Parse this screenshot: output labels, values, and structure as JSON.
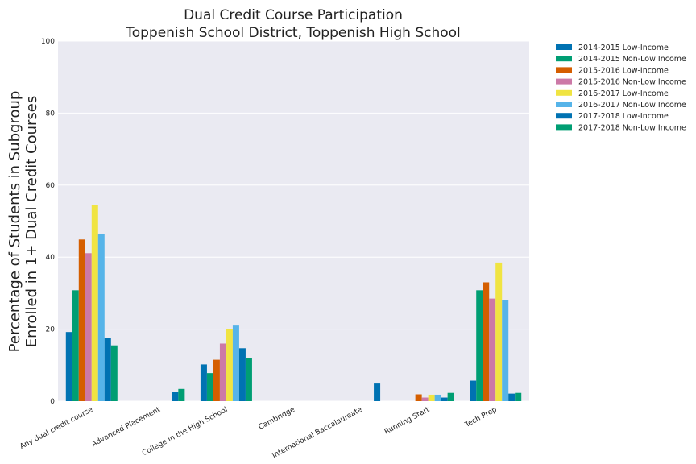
{
  "chart_data": {
    "type": "bar",
    "title": [
      "Dual Credit Course Participation",
      "Toppenish School District, Toppenish High School"
    ],
    "ylabel": [
      "Percentage of Students in Subgroup",
      "Enrolled in 1+ Dual Credit Courses"
    ],
    "xlabel": "",
    "ylim": [
      0,
      100
    ],
    "yticks": [
      0,
      20,
      40,
      60,
      80,
      100
    ],
    "grid": true,
    "legend_position": "outside-top-right",
    "categories": [
      "Any dual credit course",
      "Advanced Placement",
      "College in the High School",
      "Cambridge",
      "International Baccalaureate",
      "Running Start",
      "Tech Prep"
    ],
    "series": [
      {
        "name": "2014-2015 Low-Income",
        "color": "#0072B2",
        "values": [
          19.2,
          0,
          10.2,
          0,
          0,
          0,
          5.7
        ]
      },
      {
        "name": "2014-2015 Non-Low Income",
        "color": "#009E73",
        "values": [
          30.8,
          0,
          7.8,
          0,
          0,
          0,
          30.8
        ]
      },
      {
        "name": "2015-2016 Low-Income",
        "color": "#D55E00",
        "values": [
          44.9,
          0,
          11.5,
          0,
          0,
          1.9,
          33.0
        ]
      },
      {
        "name": "2015-2016 Non-Low Income",
        "color": "#CC79A7",
        "values": [
          41.1,
          0,
          16.0,
          0,
          0,
          1.0,
          28.5
        ]
      },
      {
        "name": "2016-2017 Low-Income",
        "color": "#F0E442",
        "values": [
          54.5,
          0,
          20.0,
          0,
          0,
          1.8,
          38.5
        ]
      },
      {
        "name": "2016-2017 Non-Low Income",
        "color": "#56B4E9",
        "values": [
          46.4,
          0,
          21.0,
          0,
          0,
          1.8,
          28.0
        ]
      },
      {
        "name": "2017-2018 Low-Income",
        "color": "#0072B2",
        "values": [
          17.6,
          2.5,
          14.7,
          0,
          4.9,
          1.0,
          2.1
        ]
      },
      {
        "name": "2017-2018 Non-Low Income",
        "color": "#009E73",
        "values": [
          15.5,
          3.4,
          12.0,
          0,
          0,
          2.3,
          2.3
        ]
      }
    ]
  }
}
